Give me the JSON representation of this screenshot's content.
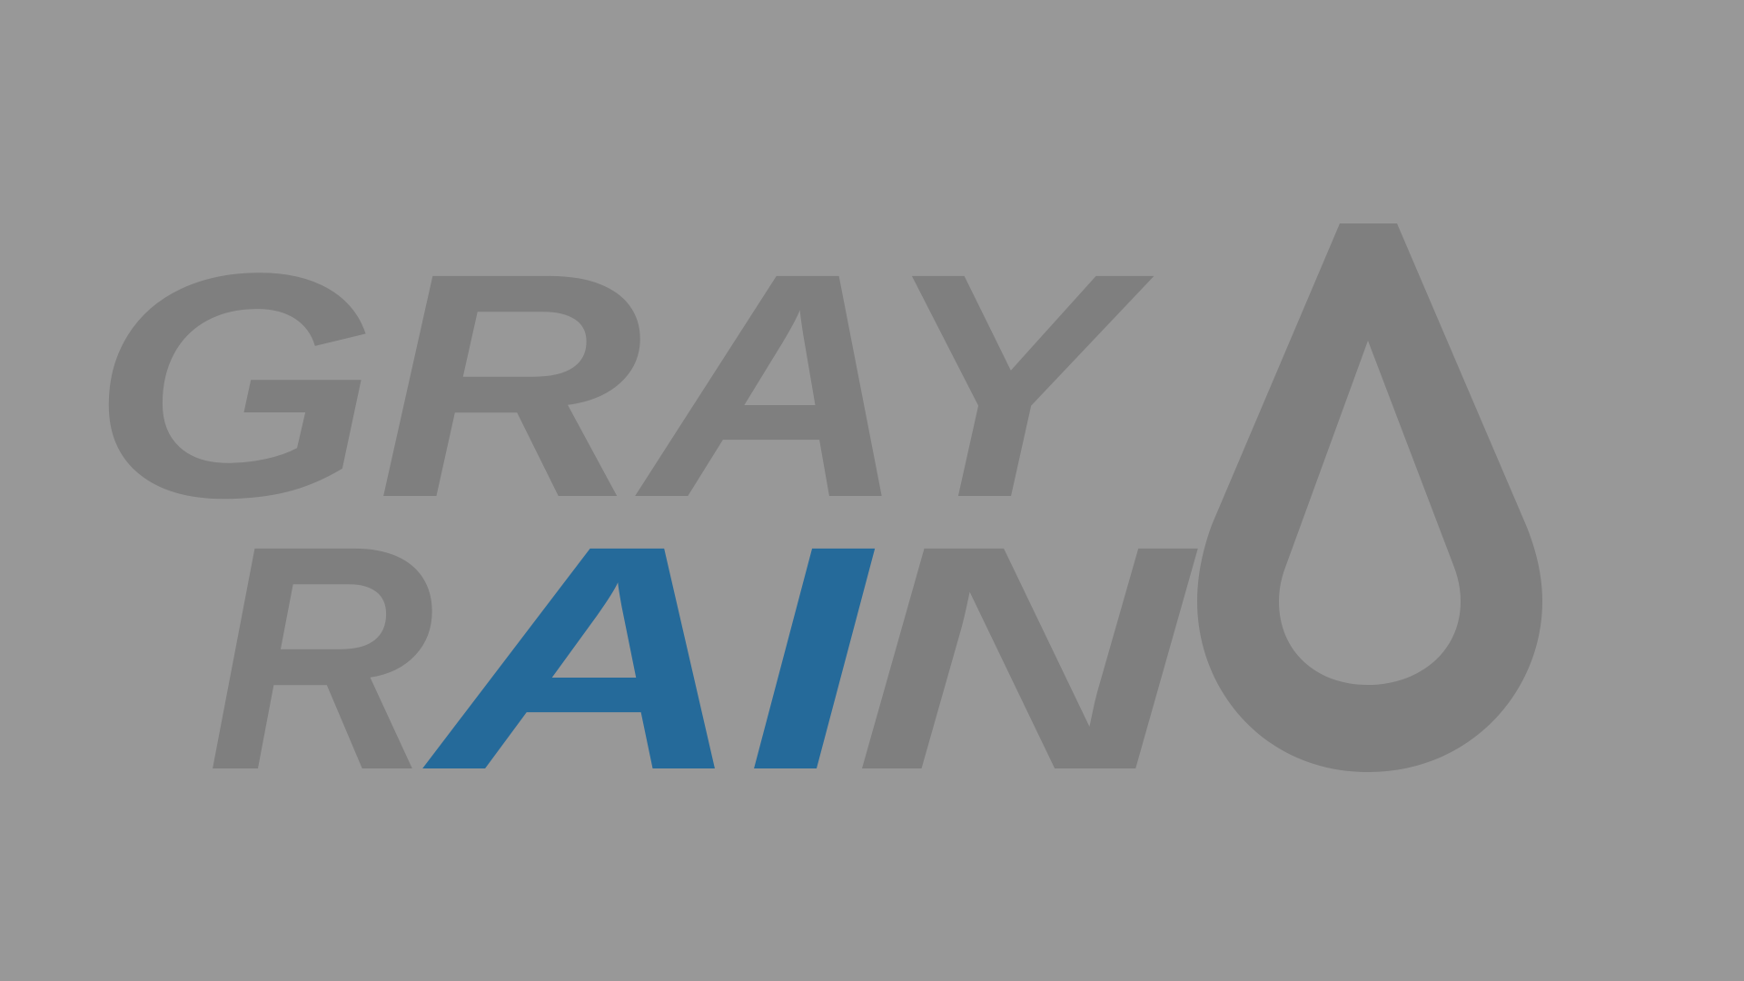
{
  "brand": {
    "line1": "GRAY",
    "line2_left": "R",
    "line2_accent": "AI",
    "line2_right": "N",
    "logo_text": "GRAY RAIN",
    "colors": {
      "background": "#989898",
      "letters": "#7f7f7f",
      "accent": "#256a9a"
    }
  },
  "icons": {
    "drop": "raindrop-icon"
  }
}
